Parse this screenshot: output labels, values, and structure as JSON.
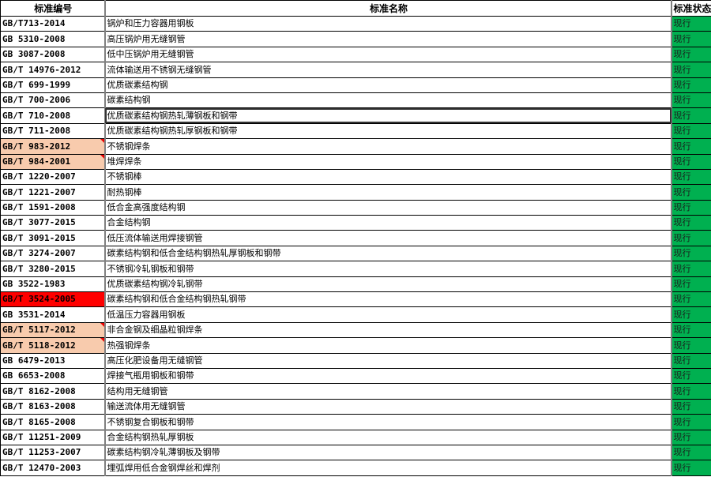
{
  "headers": {
    "code": "标准编号",
    "name": "标准名称",
    "status": "标准状态"
  },
  "colors": {
    "status_green": "#00b050",
    "highlight_orange": "#f8cbad",
    "highlight_red": "#ff0000"
  },
  "rows": [
    {
      "code": "GB/T713-2014",
      "name": "锅炉和压力容器用钢板",
      "status": "现行"
    },
    {
      "code": "GB 5310-2008",
      "name": "高压锅炉用无缝钢管",
      "status": "现行"
    },
    {
      "code": "GB 3087-2008",
      "name": "低中压锅炉用无缝钢管",
      "status": "现行"
    },
    {
      "code": "GB/T 14976-2012",
      "name": "流体输送用不锈钢无缝钢管",
      "status": "现行"
    },
    {
      "code": "GB/T 699-1999",
      "name": "优质碳素结构钢",
      "status": "现行"
    },
    {
      "code": "GB/T 700-2006",
      "name": "碳素结构钢",
      "status": "现行"
    },
    {
      "code": "GB/T 710-2008",
      "name": "优质碳素结构钢热轧薄钢板和钢带",
      "status": "现行",
      "selected": true
    },
    {
      "code": "GB/T 711-2008",
      "name": "优质碳素结构钢热轧厚钢板和钢带",
      "status": "现行"
    },
    {
      "code": "GB/T 983-2012",
      "name": "不锈钢焊条",
      "status": "现行",
      "highlight": "orange",
      "comment": true
    },
    {
      "code": "GB/T 984-2001",
      "name": "堆焊焊条",
      "status": "现行",
      "highlight": "orange",
      "comment": true
    },
    {
      "code": "GB/T 1220-2007",
      "name": "不锈钢棒",
      "status": "现行"
    },
    {
      "code": "GB/T 1221-2007",
      "name": "耐热钢棒",
      "status": "现行"
    },
    {
      "code": "GB/T 1591-2008",
      "name": "低合金高强度结构钢",
      "status": "现行"
    },
    {
      "code": "GB/T 3077-2015",
      "name": "合金结构钢",
      "status": "现行"
    },
    {
      "code": "GB/T 3091-2015",
      "name": "低压流体输送用焊接钢管",
      "status": "现行"
    },
    {
      "code": "GB/T 3274-2007",
      "name": "碳素结构钢和低合金结构钢热轧厚钢板和钢带",
      "status": "现行"
    },
    {
      "code": "GB/T 3280-2015",
      "name": "不锈钢冷轧钢板和钢带",
      "status": "现行"
    },
    {
      "code": "GB 3522-1983",
      "name": "优质碳素结构钢冷轧钢带",
      "status": "现行"
    },
    {
      "code": "GB/T 3524-2005",
      "name": "碳素结构钢和低合金结构钢热轧钢带",
      "status": "现行",
      "highlight": "red"
    },
    {
      "code": "GB 3531-2014",
      "name": "低温压力容器用钢板",
      "status": "现行"
    },
    {
      "code": "GB/T 5117-2012",
      "name": "非合金钢及细晶粒钢焊条",
      "status": "现行",
      "highlight": "orange",
      "comment": true
    },
    {
      "code": "GB/T 5118-2012",
      "name": "热强钢焊条",
      "status": "现行",
      "highlight": "orange",
      "comment": true
    },
    {
      "code": "GB 6479-2013",
      "name": "高压化肥设备用无缝钢管",
      "status": "现行"
    },
    {
      "code": "GB 6653-2008",
      "name": "焊接气瓶用钢板和钢带",
      "status": "现行"
    },
    {
      "code": "GB/T 8162-2008",
      "name": "结构用无缝钢管",
      "status": "现行"
    },
    {
      "code": "GB/T 8163-2008",
      "name": "输送流体用无缝钢管",
      "status": "现行"
    },
    {
      "code": "GB/T 8165-2008",
      "name": "不锈钢复合钢板和钢带",
      "status": "现行"
    },
    {
      "code": "GB/T 11251-2009",
      "name": "合金结构钢热轧厚钢板",
      "status": "现行"
    },
    {
      "code": "GB/T 11253-2007",
      "name": "碳素结构钢冷轧薄钢板及钢带",
      "status": "现行"
    },
    {
      "code": "GB/T 12470-2003",
      "name": "埋弧焊用低合金钢焊丝和焊剂",
      "status": "现行"
    }
  ]
}
